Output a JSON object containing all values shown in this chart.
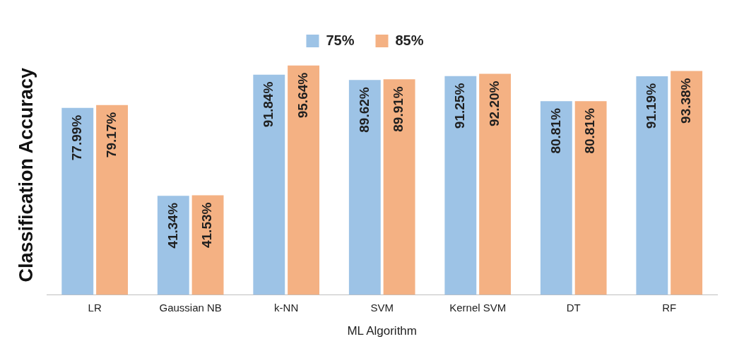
{
  "chart_data": {
    "type": "bar",
    "xlabel": "ML Algorithm",
    "ylabel": "Classification Accuracy",
    "legend": "top",
    "grid": false,
    "categories": [
      "LR",
      "Gaussian NB",
      "k-NN",
      "SVM",
      "Kernel SVM",
      "DT",
      "RF"
    ],
    "series": [
      {
        "name": "75%",
        "color": "#9dc3e6",
        "values": [
          77.99,
          41.34,
          91.84,
          89.62,
          91.25,
          80.81,
          91.19
        ],
        "value_labels": [
          "77.99%",
          "41.34%",
          "91.84%",
          "89.62%",
          "91.25%",
          "80.81%",
          "91.19%"
        ]
      },
      {
        "name": "85%",
        "color": "#f4b183",
        "values": [
          79.17,
          41.53,
          95.64,
          89.91,
          92.2,
          80.81,
          93.38
        ],
        "value_labels": [
          "79.17%",
          "41.53%",
          "95.64%",
          "89.91%",
          "92.20%",
          "80.81%",
          "93.38%"
        ]
      }
    ]
  }
}
